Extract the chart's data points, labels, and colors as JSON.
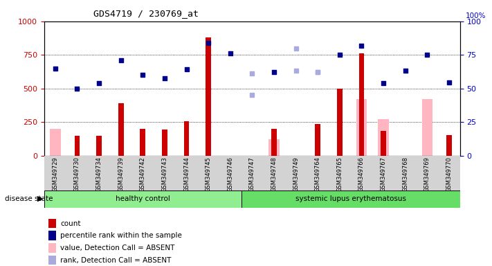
{
  "title": "GDS4719 / 230769_at",
  "samples": [
    "GSM349729",
    "GSM349730",
    "GSM349734",
    "GSM349739",
    "GSM349742",
    "GSM349743",
    "GSM349744",
    "GSM349745",
    "GSM349746",
    "GSM349747",
    "GSM349748",
    "GSM349749",
    "GSM349764",
    "GSM349765",
    "GSM349766",
    "GSM349767",
    "GSM349768",
    "GSM349769",
    "GSM349770"
  ],
  "n_healthy": 9,
  "n_sle": 10,
  "count": [
    0,
    150,
    150,
    390,
    200,
    195,
    255,
    880,
    0,
    0,
    200,
    0,
    235,
    500,
    760,
    185,
    0,
    0,
    155
  ],
  "percentile_rank": [
    65,
    50,
    54,
    71,
    60,
    57.5,
    64.5,
    84,
    76,
    61,
    62,
    63.5,
    62,
    75,
    82,
    54,
    63,
    75,
    54.5
  ],
  "value_absent": [
    200,
    null,
    null,
    null,
    null,
    null,
    null,
    null,
    null,
    null,
    120,
    null,
    null,
    null,
    420,
    270,
    null,
    420,
    null
  ],
  "rank_absent": [
    null,
    null,
    null,
    null,
    null,
    null,
    null,
    null,
    null,
    45,
    null,
    80,
    62,
    null,
    null,
    null,
    null,
    null,
    null
  ],
  "is_count_bar": [
    false,
    true,
    true,
    true,
    true,
    true,
    true,
    true,
    false,
    false,
    true,
    false,
    true,
    true,
    true,
    true,
    false,
    false,
    true
  ],
  "is_absent_value": [
    true,
    false,
    false,
    false,
    false,
    false,
    false,
    false,
    false,
    false,
    true,
    false,
    false,
    false,
    true,
    true,
    false,
    true,
    false
  ],
  "is_absent_rank": [
    false,
    false,
    false,
    false,
    false,
    false,
    false,
    false,
    false,
    true,
    false,
    true,
    true,
    false,
    false,
    false,
    false,
    false,
    false
  ],
  "ylim_left": [
    0,
    1000
  ],
  "ylim_right": [
    0,
    100
  ],
  "yticks_left": [
    0,
    250,
    500,
    750,
    1000
  ],
  "yticks_right": [
    0,
    25,
    50,
    75,
    100
  ],
  "left_axis_color": "#cc0000",
  "right_axis_color": "#0000cc",
  "bar_color": "#cc0000",
  "dot_color_dark": "#00008b",
  "dot_color_light": "#aaaadd",
  "bar_absent_color": "#ffb6c1",
  "group_healthy_color": "#90ee90",
  "group_sle_color": "#66dd66",
  "xtick_bg": "#d3d3d3",
  "legend_items": [
    {
      "label": "count",
      "color": "#cc0000"
    },
    {
      "label": "percentile rank within the sample",
      "color": "#00008b"
    },
    {
      "label": "value, Detection Call = ABSENT",
      "color": "#ffb6c1"
    },
    {
      "label": "rank, Detection Call = ABSENT",
      "color": "#aaaadd"
    }
  ]
}
